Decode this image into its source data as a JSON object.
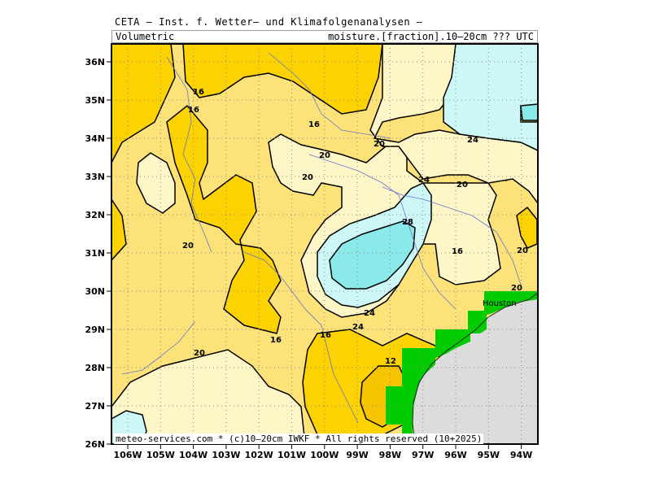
{
  "header": {
    "title": "CETA — Inst. f. Wetter— und Klimafolgenanalysen —",
    "left": "Volumetric",
    "right": "moisture.[fraction].10—20cm ??? UTC"
  },
  "credit": "meteo-services.com * (c)10—20cm IWKF * All rights reserved (10+2025)",
  "city": "Houston",
  "axes": {
    "lat_labels": [
      "36N",
      "35N",
      "34N",
      "33N",
      "32N",
      "31N",
      "30N",
      "29N",
      "28N",
      "27N",
      "26N"
    ],
    "lon_labels": [
      "106W",
      "105W",
      "104W",
      "103W",
      "102W",
      "101W",
      "100W",
      "99W",
      "98W",
      "97W",
      "96W",
      "95W",
      "94W"
    ]
  },
  "contour_labels": [
    "16",
    "16",
    "16",
    "20",
    "20",
    "20",
    "24",
    "24",
    "28",
    "20",
    "16",
    "20",
    "20",
    "24",
    "20",
    "24",
    "16",
    "16",
    "20",
    "12"
  ],
  "legend_colors": {
    "below_12": "#f6c400",
    "12_16": "#fccb20",
    "16_20": "#fde27a",
    "20_24": "#fff6c8",
    "24_28": "#cdf7f7",
    "above_28": "#8ae9e9",
    "land_mask": "#dcdcdc",
    "coastal": "#00cc00"
  }
}
